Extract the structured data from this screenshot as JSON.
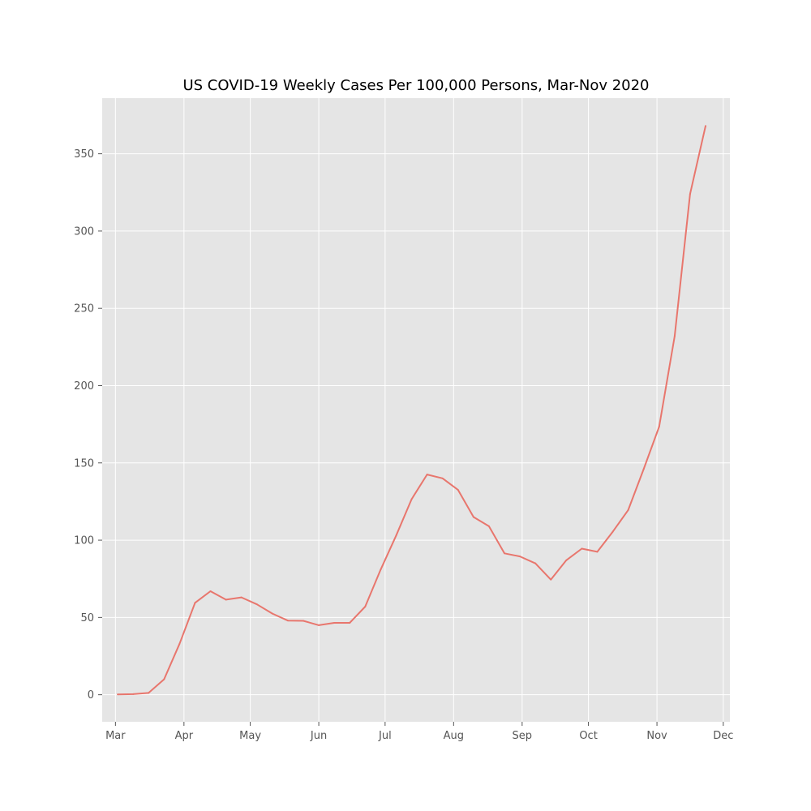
{
  "chart_data": {
    "type": "line",
    "title": "US COVID-19 Weekly Cases Per 100,000 Persons, Mar-Nov 2020",
    "xlabel": "",
    "ylabel": "",
    "x_type": "date",
    "xlim": [
      "2020-02-24",
      "2020-12-04"
    ],
    "ylim": [
      -17.5,
      386
    ],
    "grid": true,
    "legend": "none",
    "x_ticks": [
      {
        "date": "2020-03-01",
        "label": "Mar"
      },
      {
        "date": "2020-04-01",
        "label": "Apr"
      },
      {
        "date": "2020-05-01",
        "label": "May"
      },
      {
        "date": "2020-06-01",
        "label": "Jun"
      },
      {
        "date": "2020-07-01",
        "label": "Jul"
      },
      {
        "date": "2020-08-01",
        "label": "Aug"
      },
      {
        "date": "2020-09-01",
        "label": "Sep"
      },
      {
        "date": "2020-10-01",
        "label": "Oct"
      },
      {
        "date": "2020-11-01",
        "label": "Nov"
      },
      {
        "date": "2020-12-01",
        "label": "Dec"
      }
    ],
    "y_ticks": [
      0,
      50,
      100,
      150,
      200,
      250,
      300,
      350
    ],
    "series": [
      {
        "color": "#e8766d",
        "points": [
          {
            "x": "2020-03-02",
            "y": 0.2
          },
          {
            "x": "2020-03-09",
            "y": 0.4
          },
          {
            "x": "2020-03-16",
            "y": 1.2
          },
          {
            "x": "2020-03-23",
            "y": 10
          },
          {
            "x": "2020-03-30",
            "y": 33
          },
          {
            "x": "2020-04-06",
            "y": 59.5
          },
          {
            "x": "2020-04-13",
            "y": 67
          },
          {
            "x": "2020-04-20",
            "y": 61.5
          },
          {
            "x": "2020-04-27",
            "y": 63
          },
          {
            "x": "2020-05-04",
            "y": 58.5
          },
          {
            "x": "2020-05-11",
            "y": 52.5
          },
          {
            "x": "2020-05-18",
            "y": 48
          },
          {
            "x": "2020-05-25",
            "y": 47.8
          },
          {
            "x": "2020-06-01",
            "y": 45
          },
          {
            "x": "2020-06-08",
            "y": 46.5
          },
          {
            "x": "2020-06-15",
            "y": 46.5
          },
          {
            "x": "2020-06-22",
            "y": 57
          },
          {
            "x": "2020-06-29",
            "y": 81
          },
          {
            "x": "2020-07-06",
            "y": 103
          },
          {
            "x": "2020-07-13",
            "y": 126.5
          },
          {
            "x": "2020-07-20",
            "y": 142.5
          },
          {
            "x": "2020-07-27",
            "y": 140
          },
          {
            "x": "2020-08-03",
            "y": 132.5
          },
          {
            "x": "2020-08-10",
            "y": 115
          },
          {
            "x": "2020-08-17",
            "y": 109
          },
          {
            "x": "2020-08-24",
            "y": 91.5
          },
          {
            "x": "2020-08-31",
            "y": 89.5
          },
          {
            "x": "2020-09-07",
            "y": 85
          },
          {
            "x": "2020-09-14",
            "y": 74.5
          },
          {
            "x": "2020-09-21",
            "y": 87
          },
          {
            "x": "2020-09-28",
            "y": 94.5
          },
          {
            "x": "2020-10-05",
            "y": 92.5
          },
          {
            "x": "2020-10-12",
            "y": 105.5
          },
          {
            "x": "2020-10-19",
            "y": 119.5
          },
          {
            "x": "2020-10-26",
            "y": 146
          },
          {
            "x": "2020-11-02",
            "y": 173.5
          },
          {
            "x": "2020-11-09",
            "y": 232
          },
          {
            "x": "2020-11-16",
            "y": 324
          },
          {
            "x": "2020-11-23",
            "y": 368
          }
        ]
      }
    ]
  }
}
